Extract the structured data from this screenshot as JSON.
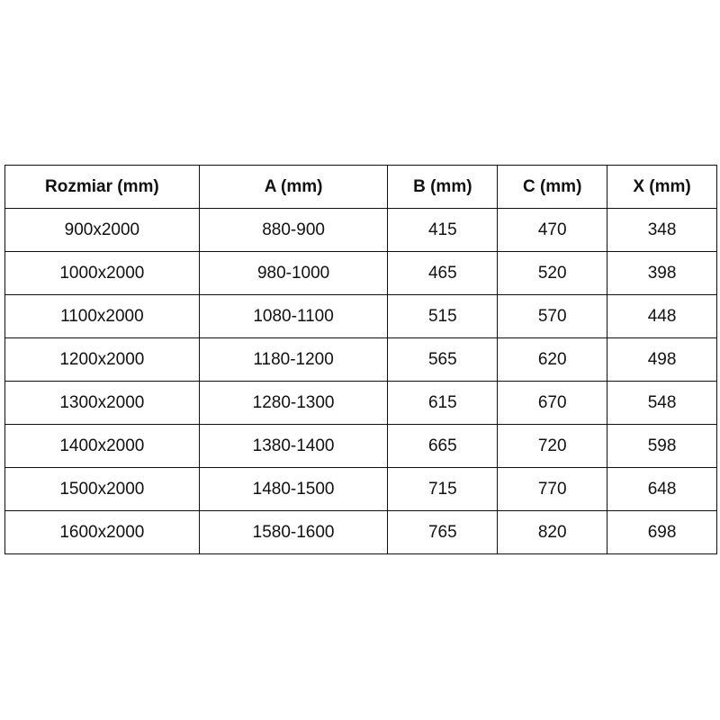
{
  "table": {
    "headers": [
      "Rozmiar (mm)",
      "A (mm)",
      "B (mm)",
      "C (mm)",
      "X (mm)"
    ],
    "rows": [
      [
        "900x2000",
        "880-900",
        "415",
        "470",
        "348"
      ],
      [
        "1000x2000",
        "980-1000",
        "465",
        "520",
        "398"
      ],
      [
        "1100x2000",
        "1080-1100",
        "515",
        "570",
        "448"
      ],
      [
        "1200x2000",
        "1180-1200",
        "565",
        "620",
        "498"
      ],
      [
        "1300x2000",
        "1280-1300",
        "615",
        "670",
        "548"
      ],
      [
        "1400x2000",
        "1380-1400",
        "665",
        "720",
        "598"
      ],
      [
        "1500x2000",
        "1480-1500",
        "715",
        "770",
        "648"
      ],
      [
        "1600x2000",
        "1580-1600",
        "765",
        "820",
        "698"
      ]
    ]
  }
}
